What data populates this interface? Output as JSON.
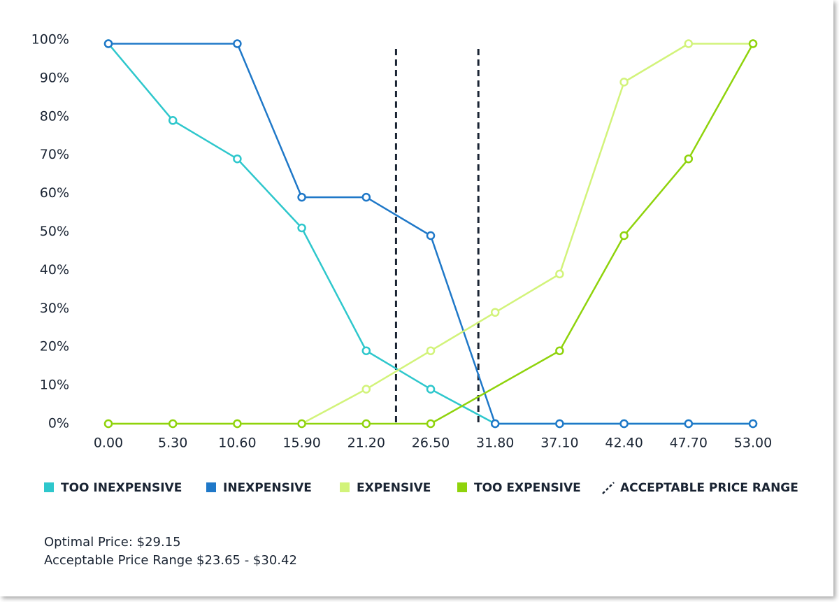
{
  "chart_data": {
    "type": "line",
    "x": [
      0,
      5.3,
      10.6,
      15.9,
      21.2,
      26.5,
      31.8,
      37.1,
      42.4,
      47.7,
      53
    ],
    "xlim": [
      0,
      53
    ],
    "xticks": [
      {
        "value": 0,
        "label": "0.00"
      },
      {
        "value": 5.3,
        "label": "5.30"
      },
      {
        "value": 10.6,
        "label": "10.60"
      },
      {
        "value": 15.9,
        "label": "15.90"
      },
      {
        "value": 21.2,
        "label": "21.20"
      },
      {
        "value": 26.5,
        "label": "26.50"
      },
      {
        "value": 31.8,
        "label": "31.80"
      },
      {
        "value": 37.1,
        "label": "37.10"
      },
      {
        "value": 42.4,
        "label": "42.40"
      },
      {
        "value": 47.7,
        "label": "47.70"
      },
      {
        "value": 53,
        "label": "53.00"
      }
    ],
    "ylim": [
      0,
      100
    ],
    "yticks": [
      {
        "value": 0,
        "label": "0%"
      },
      {
        "value": 10,
        "label": "10%"
      },
      {
        "value": 20,
        "label": "20%"
      },
      {
        "value": 30,
        "label": "30%"
      },
      {
        "value": 40,
        "label": "40%"
      },
      {
        "value": 50,
        "label": "50%"
      },
      {
        "value": 60,
        "label": "60%"
      },
      {
        "value": 70,
        "label": "70%"
      },
      {
        "value": 80,
        "label": "80%"
      },
      {
        "value": 90,
        "label": "90%"
      },
      {
        "value": 100,
        "label": "100%"
      }
    ],
    "grid": false,
    "series": [
      {
        "name": "TOO INEXPENSIVE",
        "color": "#2ec7cc",
        "values": [
          99,
          79,
          69,
          51,
          19,
          9,
          0,
          0,
          0,
          0,
          0
        ]
      },
      {
        "name": "INEXPENSIVE",
        "color": "#1f78c8",
        "x": [
          0,
          10.6,
          15.9,
          21.2,
          26.5,
          31.8,
          37.1,
          42.4,
          47.7,
          53
        ],
        "values": [
          99,
          99,
          59,
          59,
          49,
          0,
          0,
          0,
          0,
          0
        ]
      },
      {
        "name": "EXPENSIVE",
        "color": "#d2f37a",
        "values": [
          0,
          0,
          0,
          0,
          9,
          19,
          29,
          39,
          89,
          99,
          99
        ]
      },
      {
        "name": "TOO EXPENSIVE",
        "color": "#8fd30c",
        "x": [
          0,
          5.3,
          10.6,
          15.9,
          21.2,
          26.5,
          37.1,
          42.4,
          47.7,
          53
        ],
        "values": [
          0,
          0,
          0,
          0,
          0,
          0,
          19,
          49,
          69,
          99
        ]
      }
    ],
    "reference_lines": {
      "label": "ACCEPTABLE PRICE RANGE",
      "color": "#1a2433",
      "values": [
        23.65,
        30.42
      ]
    },
    "annotations": [
      "Optimal Price: $29.15",
      "Acceptable Price Range $23.65 - $30.42"
    ]
  }
}
